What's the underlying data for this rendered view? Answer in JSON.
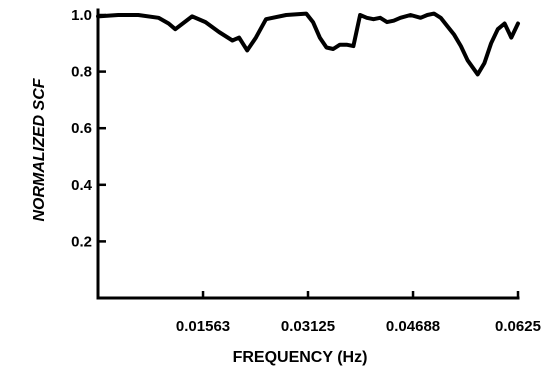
{
  "chart_data": {
    "type": "line",
    "xlabel": "FREQUENCY (Hz)",
    "ylabel": "NORMALIZED SCF",
    "xlim": [
      0,
      0.0625
    ],
    "ylim": [
      0,
      1.0
    ],
    "x_ticks": [
      0.01563,
      0.03125,
      0.04688,
      0.0625
    ],
    "x_tick_labels": [
      "0.01563",
      "0.03125",
      "0.04688",
      "0.0625"
    ],
    "y_ticks": [
      0.2,
      0.4,
      0.6,
      0.8,
      1.0
    ],
    "y_tick_labels": [
      "0.2",
      "0.4",
      "0.6",
      "0.8",
      "1.0"
    ],
    "grid": false,
    "series": [
      {
        "x": [
          0.0,
          0.003,
          0.006,
          0.009,
          0.0105,
          0.0115,
          0.014,
          0.016,
          0.018,
          0.02,
          0.021,
          0.0222,
          0.0235,
          0.025,
          0.028,
          0.031,
          0.032,
          0.033,
          0.034,
          0.035,
          0.036,
          0.037,
          0.038,
          0.039,
          0.04,
          0.041,
          0.042,
          0.043,
          0.044,
          0.045,
          0.0465,
          0.048,
          0.049,
          0.05,
          0.051,
          0.052,
          0.053,
          0.054,
          0.055,
          0.0565,
          0.0575,
          0.0585,
          0.0595,
          0.0605,
          0.0615,
          0.0625
        ],
        "y": [
          0.995,
          1.0,
          1.0,
          0.99,
          0.97,
          0.95,
          0.995,
          0.975,
          0.94,
          0.91,
          0.92,
          0.875,
          0.92,
          0.985,
          1.0,
          1.005,
          0.975,
          0.92,
          0.885,
          0.88,
          0.895,
          0.895,
          0.89,
          1.0,
          0.99,
          0.985,
          0.99,
          0.975,
          0.98,
          0.99,
          1.0,
          0.99,
          1.0,
          1.005,
          0.99,
          0.96,
          0.93,
          0.89,
          0.84,
          0.79,
          0.83,
          0.9,
          0.95,
          0.97,
          0.92,
          0.97
        ]
      }
    ]
  }
}
